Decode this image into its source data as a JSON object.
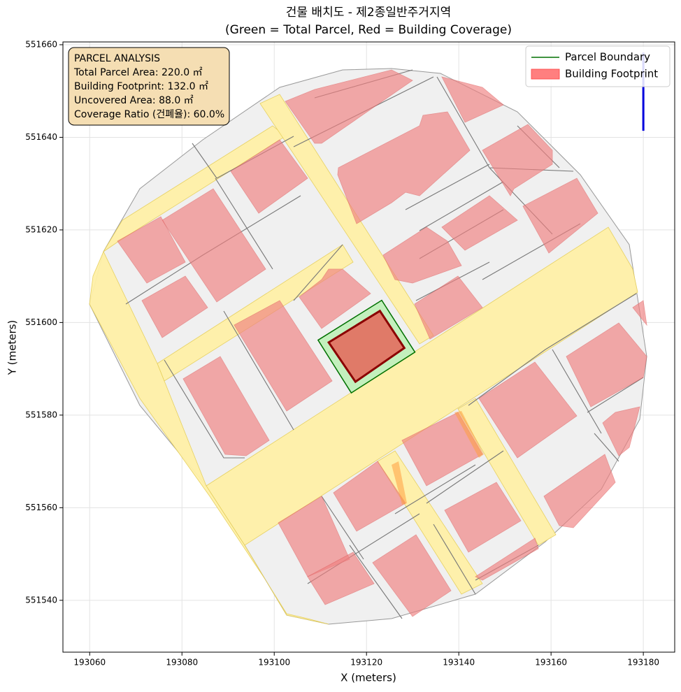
{
  "chart_data": {
    "type": "map",
    "title": "건물 배치도 - 제2종일반주거지역",
    "subtitle": "(Green = Total Parcel, Red = Building Coverage)",
    "x_label": "X (meters)",
    "y_label": "Y (meters)",
    "xlim": [
      193054.2,
      193186.8
    ],
    "ylim": [
      551528.8,
      551660.6
    ],
    "xticks": [
      193060,
      193080,
      193100,
      193120,
      193140,
      193160,
      193180
    ],
    "yticks": [
      551540,
      551560,
      551580,
      551600,
      551620,
      551640,
      551660
    ],
    "grid": true,
    "legend": "upper right",
    "annotation": [
      "PARCEL ANALYSIS",
      "Total Parcel Area: 220.0 ㎡",
      "Building Footprint: 132.0 ㎡",
      "Uncovered Area: 88.0 ㎡",
      "Coverage Ratio (건폐율): 60.0%"
    ],
    "series": [
      {
        "name": "Parcel Boundary",
        "color": "#007000",
        "fill": "#b8f0b0",
        "x": [
          193109.5,
          193123.3,
          193130.5,
          193116.7
        ],
        "y": [
          551596.2,
          551604.8,
          551593.6,
          551584.8
        ]
      },
      {
        "name": "Building Footprint",
        "color": "#ff7f7f",
        "edge": "#8b0000",
        "fill": "#e07a68",
        "x": [
          193111.8,
          193122.9,
          193128.2,
          193117.6
        ],
        "y": [
          551595.7,
          551602.5,
          551594.5,
          551587.2
        ]
      }
    ],
    "marker_line": {
      "color": "#0000dd",
      "x": [
        193180,
        193180
      ],
      "y": [
        551658.3,
        551641.4
      ]
    }
  }
}
